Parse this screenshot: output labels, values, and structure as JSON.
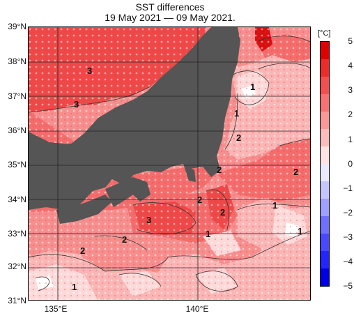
{
  "title": "SST differences",
  "subtitle": "19 May 2021 — 09 May 2021.",
  "unit": "[°C]",
  "lat_labels": [
    "39°N",
    "38°N",
    "37°N",
    "36°N",
    "35°N",
    "34°N",
    "33°N",
    "32°N",
    "31°N"
  ],
  "lon_labels": [
    "135°E",
    "140°E"
  ],
  "colorbar": {
    "ticks": [
      "5",
      "4",
      "3",
      "2",
      "1",
      "0",
      "−1",
      "−2",
      "−3",
      "−4",
      "−5"
    ],
    "colors": [
      "#e00000",
      "#ed2b2b",
      "#f25050",
      "#f67272",
      "#f99898",
      "#fbbcbc",
      "#ffe2e2",
      "#eaeaff",
      "#c6c6ff",
      "#a0a0ff",
      "#7070ff",
      "#4848ff",
      "#2424ff",
      "#0000e6"
    ]
  },
  "map": {
    "land_color": "#555555",
    "sea_colors": {
      "warm3": "#ee4848",
      "warm2": "#f46c6c",
      "warm15": "#f78e8e",
      "warm1": "#fab5b5",
      "warm05": "#fdd9d9",
      "zero": "#ffffff"
    },
    "contour_labels": [
      "3",
      "3",
      "1",
      "1",
      "2",
      "2",
      "2",
      "2",
      "2",
      "1",
      "3",
      "2",
      "1",
      "1",
      "2",
      "1"
    ]
  }
}
